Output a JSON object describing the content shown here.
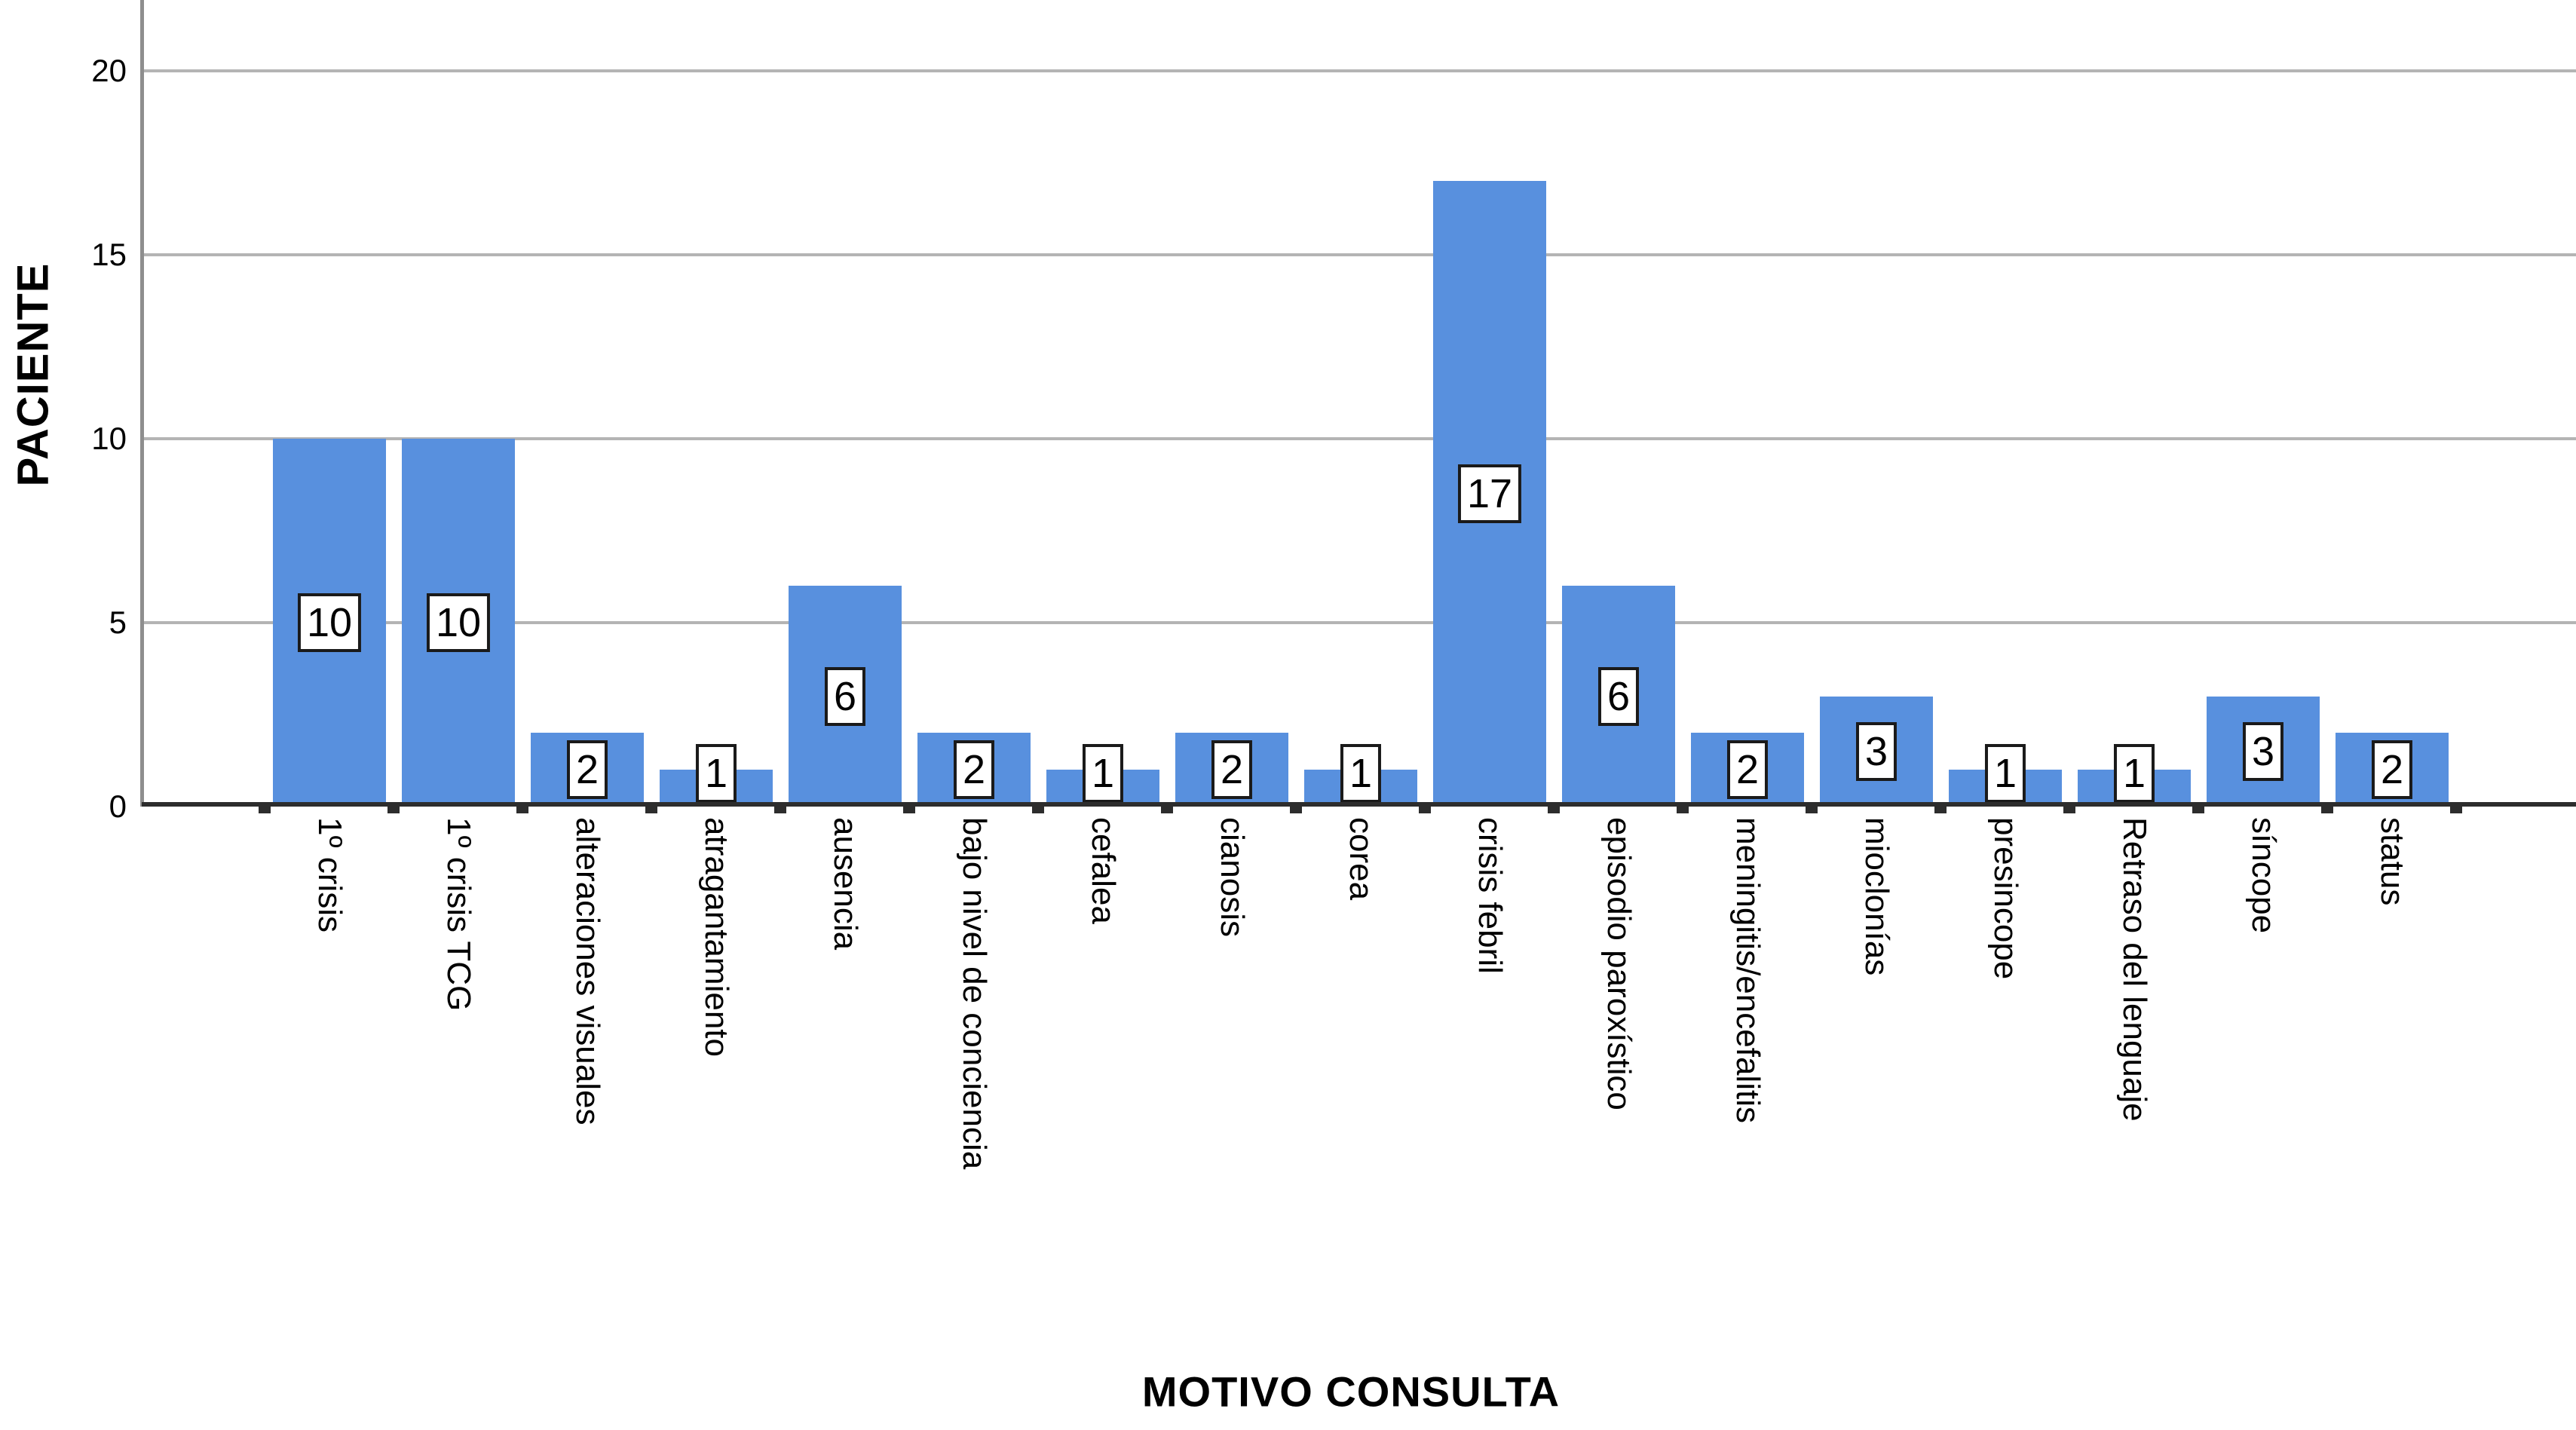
{
  "chart_data": {
    "type": "bar",
    "title": "",
    "xlabel": "MOTIVO CONSULTA",
    "ylabel": "PACIENTE",
    "categories": [
      "1º crisis",
      "1º crisis TCG",
      "alteraciones visuales",
      "atragantamiento",
      "ausencia",
      "bajo nivel de conciencia",
      "cefalea",
      "cianosis",
      "corea",
      "crisis febril",
      "episodio paroxístico",
      "meningitis/encefalitis",
      "mioclonías",
      "presincope",
      "Retraso del lenguaje",
      "síncope",
      "status"
    ],
    "values": [
      10,
      10,
      2,
      1,
      6,
      2,
      1,
      2,
      1,
      17,
      6,
      2,
      3,
      1,
      1,
      3,
      2
    ],
    "yticks": [
      0,
      5,
      10,
      15,
      20
    ],
    "ylim": [
      0,
      21.9
    ],
    "grid": "horizontal",
    "legend_position": "none",
    "bar_value_labels_boxed": true,
    "colors": {
      "bar": "#5890DE",
      "gridline": "#B4B4B4",
      "x_axis": "#2D2D2D",
      "y_axis": "#8E8E8E",
      "value_box_bg": "#FFFFFF",
      "value_box_border": "#1A1A1A",
      "text": "#000000"
    }
  }
}
